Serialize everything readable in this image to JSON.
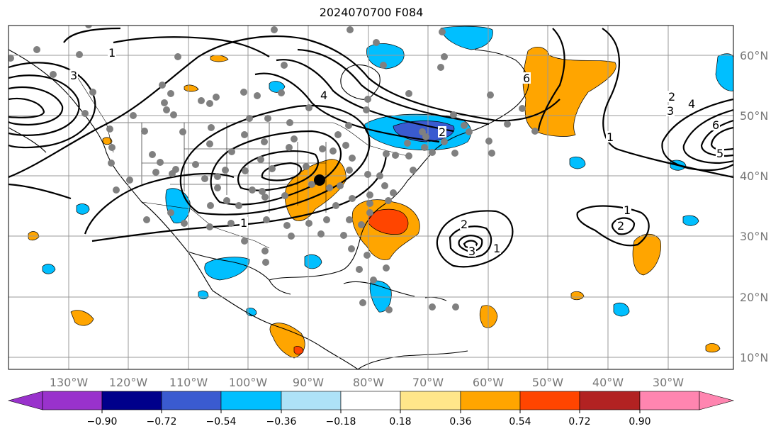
{
  "title": "2024070700 F084",
  "lon_labels": [
    "130°W",
    "120°W",
    "110°W",
    "100°W",
    "90°W",
    "80°W",
    "70°W",
    "60°W",
    "50°W",
    "40°W",
    "30°W"
  ],
  "lat_labels": [
    "60°N",
    "50°N",
    "40°N",
    "30°N",
    "20°N",
    "10°N"
  ],
  "contour_labels": [
    "1",
    "3",
    "4",
    "6",
    "2",
    "2",
    "3",
    "4",
    "6",
    "5",
    "1",
    "1",
    "2",
    "3",
    "1",
    "1",
    "2"
  ],
  "colorbar": {
    "ticks": [
      "−0.90",
      "−0.72",
      "−0.54",
      "−0.36",
      "−0.18",
      "0.18",
      "0.36",
      "0.54",
      "0.72",
      "0.90"
    ],
    "colors": [
      "#9932cc",
      "#00008b",
      "#3a5bd0",
      "#00bfff",
      "#aee2f7",
      "#ffffff",
      "#ffe68a",
      "#ffa500",
      "#ff4500",
      "#b22222",
      "#ff85b0"
    ]
  }
}
